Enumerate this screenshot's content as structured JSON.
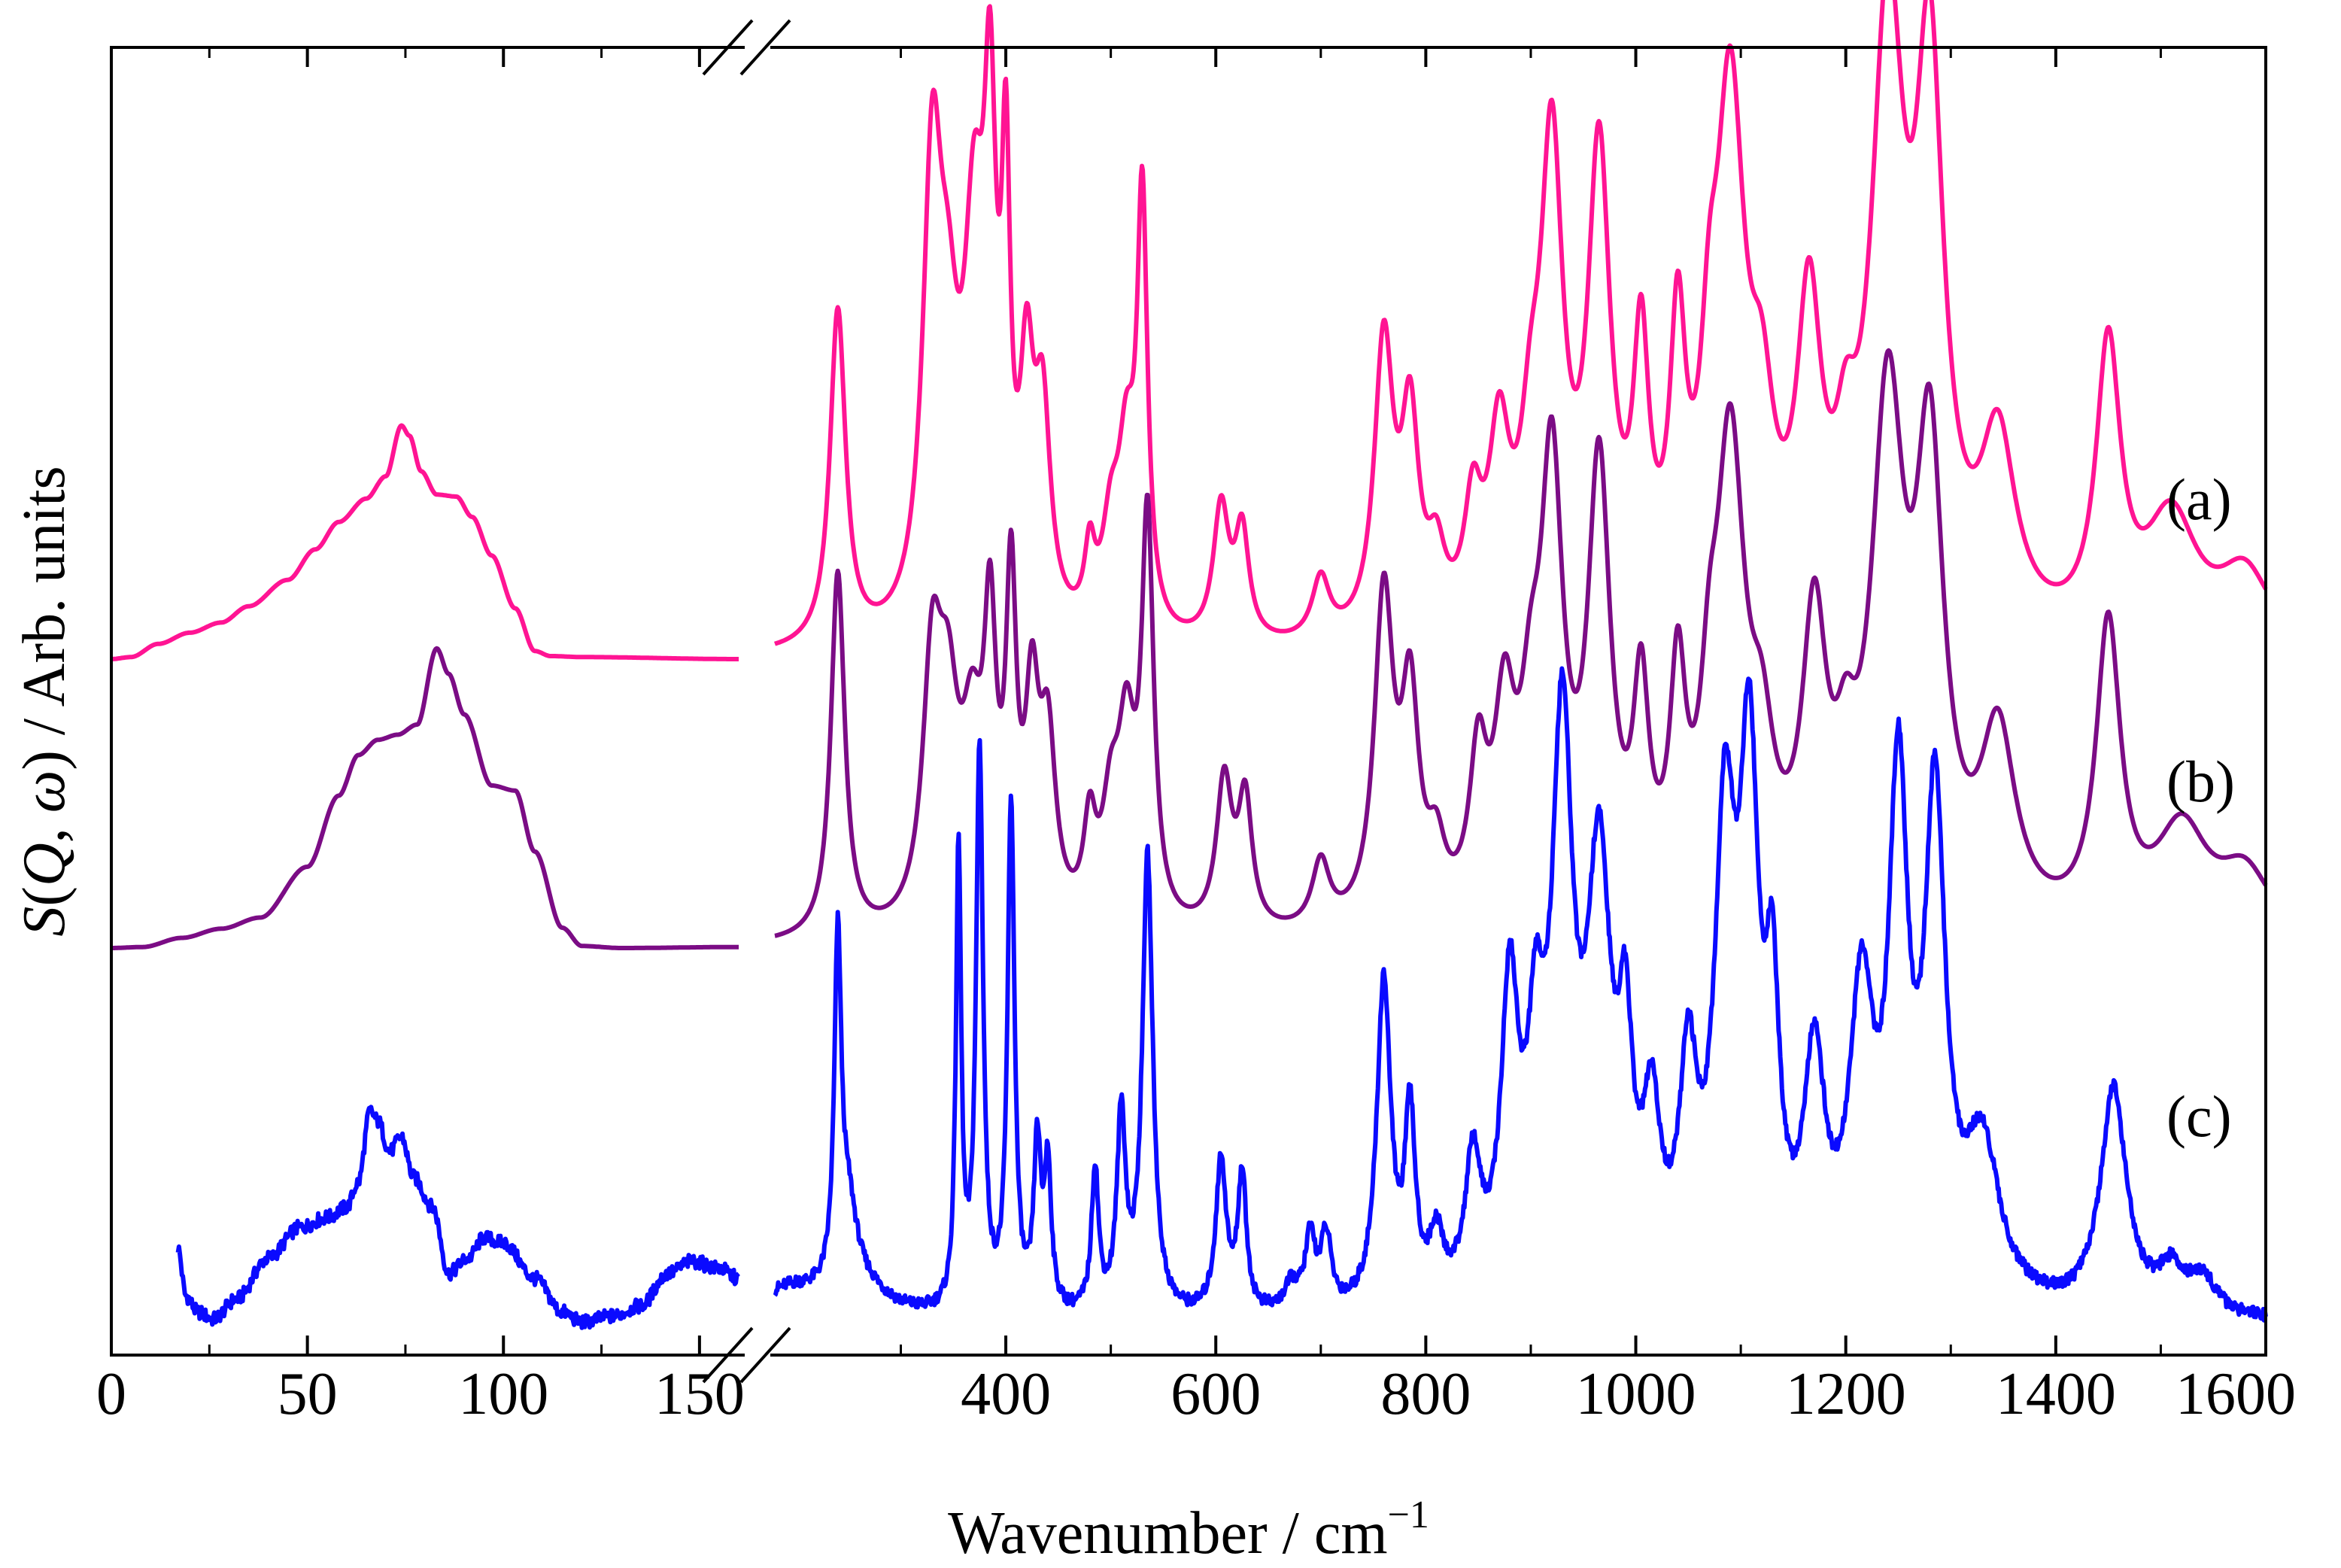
{
  "chart_data": {
    "type": "line",
    "title": "",
    "xlabel": "Wavenumber / cm",
    "xlabel_superscript": "−1",
    "ylabel": "S(Q, ω) / Arb. units",
    "ylabel_parts": {
      "symbol": "S",
      "open": "(",
      "q": "Q",
      "comma": ", ",
      "w": "ω",
      "close": ")",
      "rest": " / Arb. units"
    },
    "x_axis_break": true,
    "x_ranges": [
      {
        "range": [
          0,
          160
        ],
        "ticks": [
          0,
          50,
          100,
          150
        ],
        "tick_labels": [
          "0",
          "50",
          "100",
          "150"
        ]
      },
      {
        "range": [
          180,
          1600
        ],
        "ticks": [
          400,
          600,
          800,
          1000,
          1200,
          1400,
          1600
        ],
        "tick_labels": [
          "400",
          "600",
          "800",
          "1000",
          "1200",
          "1400",
          "1600"
        ]
      }
    ],
    "y_ticks_shown": false,
    "colors": {
      "a": "#ff1493",
      "b": "#7b0c85",
      "c": "#0a0aff"
    },
    "series": [
      {
        "name": "(a)",
        "baseline": 0.0,
        "low": [
          [
            0,
            0.0
          ],
          [
            5,
            0.02
          ],
          [
            12,
            0.15
          ],
          [
            20,
            0.26
          ],
          [
            28,
            0.36
          ],
          [
            35,
            0.52
          ],
          [
            45,
            0.78
          ],
          [
            52,
            1.08
          ],
          [
            58,
            1.35
          ],
          [
            65,
            1.58
          ],
          [
            70,
            1.8
          ],
          [
            74,
            2.3
          ],
          [
            76,
            2.2
          ],
          [
            79,
            1.85
          ],
          [
            83,
            1.62
          ],
          [
            88,
            1.6
          ],
          [
            92,
            1.4
          ],
          [
            97,
            1.02
          ],
          [
            103,
            0.5
          ],
          [
            108,
            0.08
          ],
          [
            112,
            0.03
          ],
          [
            120,
            0.02
          ],
          [
            160,
            0.0
          ]
        ],
        "peaks": [
          [
            240,
            3.3,
            9
          ],
          [
            330,
            4.3,
            11
          ],
          [
            345,
            2.0,
            12
          ],
          [
            370,
            3.5,
            12
          ],
          [
            385,
            4.1,
            7
          ],
          [
            400,
            3.8,
            5
          ],
          [
            420,
            2.2,
            8
          ],
          [
            435,
            2.0,
            9
          ],
          [
            480,
            0.7,
            6
          ],
          [
            500,
            0.9,
            10
          ],
          [
            515,
            1.6,
            10
          ],
          [
            530,
            4.1,
            6
          ],
          [
            605,
            1.3,
            9
          ],
          [
            625,
            1.05,
            8
          ],
          [
            700,
            0.6,
            10
          ],
          [
            760,
            2.85,
            11
          ],
          [
            785,
            2.0,
            10
          ],
          [
            810,
            0.65,
            10
          ],
          [
            845,
            1.1,
            10
          ],
          [
            870,
            1.75,
            12
          ],
          [
            900,
            1.3,
            12
          ],
          [
            920,
            4.5,
            13
          ],
          [
            965,
            4.5,
            13
          ],
          [
            1005,
            2.5,
            9
          ],
          [
            1040,
            2.6,
            9
          ],
          [
            1070,
            1.5,
            10
          ],
          [
            1090,
            5.0,
            17
          ],
          [
            1120,
            1.5,
            14
          ],
          [
            1165,
            2.9,
            14
          ],
          [
            1200,
            1.0,
            12
          ],
          [
            1240,
            5.8,
            19
          ],
          [
            1280,
            5.2,
            16
          ],
          [
            1345,
            1.8,
            20
          ],
          [
            1450,
            2.8,
            14
          ],
          [
            1510,
            1.2,
            30
          ],
          [
            1580,
            0.7,
            30
          ]
        ]
      },
      {
        "name": "(b)",
        "baseline": 0.0,
        "low": [
          [
            0,
            0.0
          ],
          [
            8,
            0.01
          ],
          [
            18,
            0.1
          ],
          [
            28,
            0.19
          ],
          [
            38,
            0.3
          ],
          [
            50,
            0.8
          ],
          [
            58,
            1.5
          ],
          [
            63,
            1.9
          ],
          [
            68,
            2.05
          ],
          [
            73,
            2.1
          ],
          [
            78,
            2.2
          ],
          [
            83,
            2.95
          ],
          [
            86,
            2.7
          ],
          [
            90,
            2.3
          ],
          [
            97,
            1.6
          ],
          [
            103,
            1.55
          ],
          [
            108,
            0.95
          ],
          [
            115,
            0.2
          ],
          [
            120,
            0.02
          ],
          [
            130,
            0.0
          ],
          [
            160,
            0.01
          ]
        ],
        "peaks": [
          [
            240,
            3.6,
            8
          ],
          [
            330,
            2.4,
            11
          ],
          [
            345,
            1.8,
            12
          ],
          [
            368,
            1.6,
            12
          ],
          [
            385,
            2.6,
            7
          ],
          [
            405,
            3.1,
            6
          ],
          [
            425,
            2.0,
            8
          ],
          [
            440,
            1.7,
            9
          ],
          [
            480,
            0.9,
            7
          ],
          [
            500,
            1.0,
            10
          ],
          [
            515,
            1.7,
            10
          ],
          [
            535,
            3.9,
            7
          ],
          [
            608,
            1.45,
            9
          ],
          [
            628,
            1.25,
            8
          ],
          [
            700,
            0.65,
            10
          ],
          [
            760,
            3.2,
            11
          ],
          [
            785,
            2.1,
            10
          ],
          [
            810,
            0.6,
            10
          ],
          [
            850,
            1.45,
            10
          ],
          [
            875,
            1.85,
            12
          ],
          [
            900,
            1.4,
            12
          ],
          [
            920,
            4.2,
            13
          ],
          [
            965,
            4.3,
            13
          ],
          [
            1005,
            2.0,
            9
          ],
          [
            1040,
            2.1,
            9
          ],
          [
            1070,
            1.2,
            10
          ],
          [
            1090,
            4.5,
            17
          ],
          [
            1120,
            1.2,
            14
          ],
          [
            1170,
            2.7,
            14
          ],
          [
            1200,
            0.9,
            12
          ],
          [
            1240,
            4.9,
            19
          ],
          [
            1280,
            4.3,
            16
          ],
          [
            1345,
            1.8,
            20
          ],
          [
            1450,
            2.95,
            14
          ],
          [
            1520,
            1.0,
            30
          ],
          [
            1580,
            0.6,
            30
          ]
        ]
      },
      {
        "name": "(c)",
        "baseline": 0.0,
        "low": [
          [
            17,
            0.75
          ],
          [
            19,
            0.28
          ],
          [
            22,
            0.12
          ],
          [
            26,
            0.05
          ],
          [
            32,
            0.25
          ],
          [
            40,
            0.65
          ],
          [
            48,
            0.95
          ],
          [
            55,
            1.05
          ],
          [
            60,
            1.15
          ],
          [
            63,
            1.4
          ],
          [
            66,
            2.1
          ],
          [
            68,
            2.0
          ],
          [
            71,
            1.7
          ],
          [
            74,
            1.85
          ],
          [
            77,
            1.45
          ],
          [
            82,
            1.15
          ],
          [
            86,
            0.5
          ],
          [
            91,
            0.65
          ],
          [
            95,
            0.85
          ],
          [
            100,
            0.8
          ],
          [
            108,
            0.45
          ],
          [
            115,
            0.12
          ],
          [
            120,
            0.02
          ],
          [
            128,
            0.08
          ],
          [
            135,
            0.18
          ],
          [
            142,
            0.5
          ],
          [
            148,
            0.62
          ],
          [
            155,
            0.55
          ],
          [
            160,
            0.45
          ]
        ],
        "peaks": [
          [
            195,
            0.3,
            40
          ],
          [
            240,
            3.3,
            4
          ],
          [
            250,
            0.8,
            10
          ],
          [
            265,
            0.25,
            30
          ],
          [
            355,
            4.5,
            3
          ],
          [
            375,
            5.5,
            4
          ],
          [
            405,
            5.0,
            4
          ],
          [
            430,
            1.6,
            4
          ],
          [
            440,
            1.4,
            4
          ],
          [
            485,
            1.4,
            4
          ],
          [
            510,
            1.9,
            5
          ],
          [
            535,
            4.5,
            6
          ],
          [
            605,
            1.5,
            6
          ],
          [
            625,
            1.35,
            5
          ],
          [
            672,
            0.25,
            8
          ],
          [
            690,
            0.7,
            6
          ],
          [
            705,
            0.7,
            6
          ],
          [
            760,
            3.2,
            8
          ],
          [
            785,
            1.8,
            6
          ],
          [
            810,
            0.6,
            8
          ],
          [
            845,
            1.3,
            9
          ],
          [
            880,
            2.9,
            10
          ],
          [
            905,
            2.0,
            10
          ],
          [
            930,
            5.3,
            12
          ],
          [
            965,
            4.0,
            14
          ],
          [
            990,
            2.0,
            8
          ],
          [
            1015,
            1.55,
            10
          ],
          [
            1050,
            2.0,
            10
          ],
          [
            1085,
            4.3,
            12
          ],
          [
            1108,
            4.8,
            11
          ],
          [
            1130,
            2.4,
            8
          ],
          [
            1170,
            2.2,
            12
          ],
          [
            1215,
            2.8,
            14
          ],
          [
            1250,
            4.8,
            11
          ],
          [
            1285,
            4.7,
            12
          ],
          [
            1330,
            1.5,
            20
          ],
          [
            1455,
            2.2,
            15
          ],
          [
            1510,
            0.4,
            15
          ],
          [
            1540,
            0.35,
            15
          ]
        ]
      }
    ]
  }
}
